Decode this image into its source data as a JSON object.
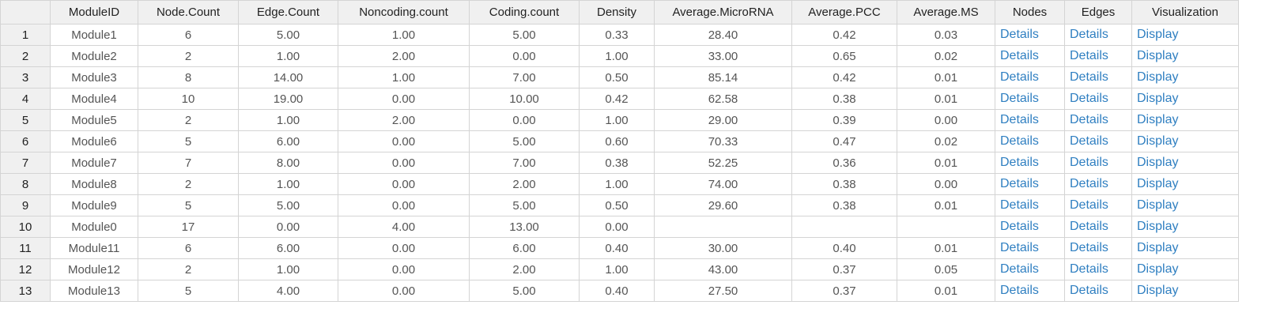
{
  "colors": {
    "header_bg": "#f0f0f0",
    "border": "#d4d4d4",
    "link": "#2f7fc1",
    "cell_text": "#555555"
  },
  "table": {
    "columns": [
      "",
      "ModuleID",
      "Node.Count",
      "Edge.Count",
      "Noncoding.count",
      "Coding.count",
      "Density",
      "Average.MicroRNA",
      "Average.PCC",
      "Average.MS",
      "Nodes",
      "Edges",
      "Visualization"
    ],
    "rows": [
      {
        "num": "1",
        "cells": [
          "Module1",
          "6",
          "5.00",
          "1.00",
          "5.00",
          "0.33",
          "28.40",
          "0.42",
          "0.03"
        ],
        "nodes": "Details",
        "edges": "Details",
        "viz": "Display"
      },
      {
        "num": "2",
        "cells": [
          "Module2",
          "2",
          "1.00",
          "2.00",
          "0.00",
          "1.00",
          "33.00",
          "0.65",
          "0.02"
        ],
        "nodes": "Details",
        "edges": "Details",
        "viz": "Display"
      },
      {
        "num": "3",
        "cells": [
          "Module3",
          "8",
          "14.00",
          "1.00",
          "7.00",
          "0.50",
          "85.14",
          "0.42",
          "0.01"
        ],
        "nodes": "Details",
        "edges": "Details",
        "viz": "Display"
      },
      {
        "num": "4",
        "cells": [
          "Module4",
          "10",
          "19.00",
          "0.00",
          "10.00",
          "0.42",
          "62.58",
          "0.38",
          "0.01"
        ],
        "nodes": "Details",
        "edges": "Details",
        "viz": "Display"
      },
      {
        "num": "5",
        "cells": [
          "Module5",
          "2",
          "1.00",
          "2.00",
          "0.00",
          "1.00",
          "29.00",
          "0.39",
          "0.00"
        ],
        "nodes": "Details",
        "edges": "Details",
        "viz": "Display"
      },
      {
        "num": "6",
        "cells": [
          "Module6",
          "5",
          "6.00",
          "0.00",
          "5.00",
          "0.60",
          "70.33",
          "0.47",
          "0.02"
        ],
        "nodes": "Details",
        "edges": "Details",
        "viz": "Display"
      },
      {
        "num": "7",
        "cells": [
          "Module7",
          "7",
          "8.00",
          "0.00",
          "7.00",
          "0.38",
          "52.25",
          "0.36",
          "0.01"
        ],
        "nodes": "Details",
        "edges": "Details",
        "viz": "Display"
      },
      {
        "num": "8",
        "cells": [
          "Module8",
          "2",
          "1.00",
          "0.00",
          "2.00",
          "1.00",
          "74.00",
          "0.38",
          "0.00"
        ],
        "nodes": "Details",
        "edges": "Details",
        "viz": "Display"
      },
      {
        "num": "9",
        "cells": [
          "Module9",
          "5",
          "5.00",
          "0.00",
          "5.00",
          "0.50",
          "29.60",
          "0.38",
          "0.01"
        ],
        "nodes": "Details",
        "edges": "Details",
        "viz": "Display"
      },
      {
        "num": "10",
        "cells": [
          "Module0",
          "17",
          "0.00",
          "4.00",
          "13.00",
          "0.00",
          "",
          "",
          ""
        ],
        "nodes": "Details",
        "edges": "Details",
        "viz": "Display"
      },
      {
        "num": "11",
        "cells": [
          "Module11",
          "6",
          "6.00",
          "0.00",
          "6.00",
          "0.40",
          "30.00",
          "0.40",
          "0.01"
        ],
        "nodes": "Details",
        "edges": "Details",
        "viz": "Display"
      },
      {
        "num": "12",
        "cells": [
          "Module12",
          "2",
          "1.00",
          "0.00",
          "2.00",
          "1.00",
          "43.00",
          "0.37",
          "0.05"
        ],
        "nodes": "Details",
        "edges": "Details",
        "viz": "Display"
      },
      {
        "num": "13",
        "cells": [
          "Module13",
          "5",
          "4.00",
          "0.00",
          "5.00",
          "0.40",
          "27.50",
          "0.37",
          "0.01"
        ],
        "nodes": "Details",
        "edges": "Details",
        "viz": "Display"
      }
    ]
  }
}
